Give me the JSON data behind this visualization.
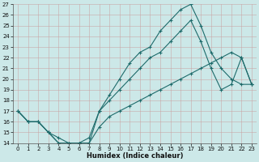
{
  "xlabel": "Humidex (Indice chaleur)",
  "xlim": [
    -0.5,
    23.5
  ],
  "ylim": [
    14,
    27
  ],
  "yticks": [
    14,
    15,
    16,
    17,
    18,
    19,
    20,
    21,
    22,
    23,
    24,
    25,
    26,
    27
  ],
  "xticks": [
    0,
    1,
    2,
    3,
    4,
    5,
    6,
    7,
    8,
    9,
    10,
    11,
    12,
    13,
    14,
    15,
    16,
    17,
    18,
    19,
    20,
    21,
    22,
    23
  ],
  "bg_color": "#cce8e8",
  "grid_color": "#b0d4d4",
  "line_color": "#1e6b6b",
  "line1_x": [
    0,
    1,
    2,
    3,
    4,
    5,
    6,
    7,
    8,
    9,
    10,
    11,
    12,
    13,
    14,
    15,
    16,
    17,
    18,
    19,
    20,
    21,
    22,
    23
  ],
  "line1_y": [
    17,
    16,
    16,
    15,
    14,
    14,
    14,
    14,
    17,
    18.5,
    20,
    21.5,
    22.5,
    23,
    24.5,
    25.5,
    26.5,
    27,
    25,
    22.5,
    21,
    20,
    19.5,
    19.5
  ],
  "line2_x": [
    0,
    1,
    2,
    3,
    4,
    5,
    6,
    7,
    8,
    9,
    10,
    11,
    12,
    13,
    14,
    15,
    16,
    17,
    18,
    19,
    20,
    21,
    22,
    23
  ],
  "line2_y": [
    17,
    16,
    16,
    15,
    14,
    14,
    14,
    14.5,
    17,
    18,
    19,
    20,
    21,
    22,
    22.5,
    23.5,
    24.5,
    25.5,
    23.5,
    21,
    19,
    19.5,
    22,
    19.5
  ],
  "line3_x": [
    0,
    1,
    2,
    3,
    4,
    5,
    6,
    7,
    8,
    9,
    10,
    11,
    12,
    13,
    14,
    15,
    16,
    17,
    18,
    19,
    20,
    21,
    22,
    23
  ],
  "line3_y": [
    17,
    16,
    16,
    15,
    14.5,
    14,
    14,
    14,
    15.5,
    16.5,
    17,
    17.5,
    18,
    18.5,
    19,
    19.5,
    20,
    20.5,
    21,
    21.5,
    22,
    22.5,
    22,
    19.5
  ]
}
